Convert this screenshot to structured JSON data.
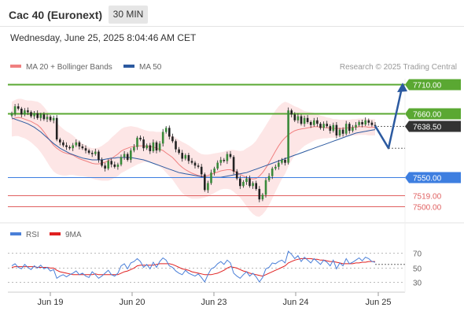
{
  "header": {
    "instrument": "Cac 40 (Euronext)",
    "timeframe": "30 MIN",
    "datetime": "Wednesday, June 25, 2025 8:04:46 AM CET",
    "credit": "Research © 2025 Trading Central"
  },
  "colors": {
    "ma20": "#f08080",
    "bollinger_fill": "#fde2e2",
    "ma50": "#2c5aa0",
    "resistance": "#5aa832",
    "support": "#3d7ee0",
    "minor_support": "#e06060",
    "price_box": "#333333",
    "forecast_arrow": "#2c5aa0",
    "rsi": "#4a7fd8",
    "rsi_ma": "#e02020",
    "candle_up": "#3a8a3a",
    "candle_down": "#222222"
  },
  "chart_data": [
    {
      "type": "candlestick",
      "legend": [
        "MA 20 + Bollinger Bands",
        "MA 50"
      ],
      "ylim": [
        7490,
        7720
      ],
      "x_ticks": [
        "Jun 19",
        "Jun 20",
        "Jun 23",
        "Jun 24",
        "Jun 25"
      ],
      "levels": [
        {
          "value": 7710.0,
          "label": "7710.00",
          "kind": "resistance"
        },
        {
          "value": 7660.0,
          "label": "7660.00",
          "kind": "resistance"
        },
        {
          "value": 7638.5,
          "label": "7638.50",
          "kind": "current"
        },
        {
          "value": 7550.0,
          "label": "7550.00",
          "kind": "support"
        },
        {
          "value": 7519.0,
          "label": "7519.00",
          "kind": "minor_support"
        },
        {
          "value": 7500.0,
          "label": "7500.00",
          "kind": "minor_support"
        }
      ],
      "closes": [
        7660,
        7672,
        7668,
        7658,
        7665,
        7662,
        7655,
        7660,
        7652,
        7658,
        7650,
        7654,
        7648,
        7652,
        7615,
        7610,
        7605,
        7602,
        7600,
        7605,
        7610,
        7603,
        7600,
        7596,
        7592,
        7590,
        7594,
        7580,
        7570,
        7565,
        7578,
        7572,
        7568,
        7572,
        7585,
        7590,
        7580,
        7596,
        7602,
        7618,
        7615,
        7600,
        7605,
        7595,
        7610,
        7596,
        7608,
        7628,
        7635,
        7620,
        7612,
        7598,
        7592,
        7582,
        7588,
        7578,
        7575,
        7570,
        7568,
        7555,
        7528,
        7540,
        7558,
        7565,
        7575,
        7580,
        7578,
        7590,
        7585,
        7560,
        7548,
        7535,
        7542,
        7548,
        7535,
        7540,
        7530,
        7512,
        7520,
        7545,
        7552,
        7565,
        7568,
        7575,
        7580,
        7575,
        7665,
        7658,
        7648,
        7655,
        7642,
        7652,
        7645,
        7640,
        7648,
        7642,
        7635,
        7642,
        7638,
        7630,
        7640,
        7622,
        7632,
        7625,
        7642,
        7630,
        7636,
        7640,
        7645,
        7641,
        7648,
        7644,
        7640,
        7638.5
      ],
      "ma20": [
        7650,
        7652,
        7653,
        7652,
        7650,
        7648,
        7646,
        7643,
        7640,
        7635,
        7628,
        7620,
        7612,
        7605,
        7600,
        7596,
        7593,
        7591,
        7590,
        7588,
        7585,
        7582,
        7580,
        7578,
        7576,
        7574,
        7573,
        7573,
        7574,
        7576,
        7578,
        7582,
        7586,
        7590,
        7595,
        7598,
        7600,
        7602,
        7603,
        7604,
        7604,
        7604,
        7603,
        7603,
        7602,
        7600,
        7598,
        7596,
        7592,
        7588,
        7584,
        7578,
        7572,
        7567,
        7563,
        7560,
        7557,
        7555,
        7553,
        7552,
        7552,
        7553,
        7555,
        7557,
        7559,
        7561,
        7562,
        7563,
        7563,
        7561,
        7558,
        7555,
        7552,
        7550,
        7548,
        7547,
        7548,
        7552,
        7558,
        7566,
        7575,
        7585,
        7595,
        7604,
        7612,
        7618,
        7623,
        7627,
        7630,
        7632,
        7633,
        7634,
        7635,
        7636,
        7637,
        7637,
        7636,
        7636,
        7635,
        7635,
        7634,
        7634,
        7634,
        7634,
        7635,
        7635,
        7636,
        7636,
        7637,
        7637,
        7637,
        7636,
        7636,
        7636
      ],
      "bb_width": [
        30,
        31,
        32,
        33,
        33,
        34,
        36,
        38,
        40,
        42,
        43,
        44,
        45,
        45,
        44,
        42,
        40,
        38,
        36,
        34,
        32,
        30,
        28,
        27,
        26,
        26,
        27,
        28,
        30,
        32,
        34,
        36,
        37,
        38,
        38,
        38,
        37,
        36,
        34,
        32,
        30,
        28,
        27,
        26,
        27,
        28,
        30,
        32,
        34,
        36,
        38,
        40,
        42,
        44,
        45,
        45,
        44,
        42,
        40,
        38,
        37,
        36,
        35,
        34,
        33,
        32,
        32,
        33,
        34,
        36,
        38,
        40,
        44,
        50,
        55,
        60,
        65,
        70,
        72,
        73,
        73,
        72,
        70,
        68,
        65,
        62,
        55,
        48,
        42,
        38,
        34,
        30,
        28,
        26,
        24,
        22,
        20,
        19,
        18,
        17,
        16,
        16,
        15,
        15,
        14,
        14,
        14,
        14,
        14,
        14,
        14,
        14,
        14,
        14
      ],
      "ma50": [
        7652,
        7650,
        7648,
        7646,
        7644,
        7642,
        7639,
        7636,
        7632,
        7628,
        7623,
        7618,
        7613,
        7608,
        7604,
        7600,
        7597,
        7594,
        7591,
        7589,
        7587,
        7585,
        7583,
        7582,
        7581,
        7580,
        7580,
        7580,
        7580,
        7581,
        7582,
        7583,
        7583,
        7584,
        7584,
        7584,
        7584,
        7584,
        7583,
        7582,
        7581,
        7580,
        7578,
        7576,
        7574,
        7572,
        7570,
        7568,
        7566,
        7564,
        7562,
        7560,
        7558,
        7557,
        7556,
        7555,
        7554,
        7553,
        7552,
        7551,
        7550,
        7550,
        7550,
        7550,
        7550,
        7550,
        7551,
        7552,
        7553,
        7554,
        7555,
        7556,
        7557,
        7558,
        7560,
        7562,
        7564,
        7566,
        7568,
        7570,
        7572,
        7574,
        7576,
        7578,
        7580,
        7582,
        7584,
        7586,
        7588,
        7590,
        7592,
        7594,
        7596,
        7598,
        7600,
        7602,
        7604,
        7606,
        7608,
        7610,
        7612,
        7614,
        7616,
        7618,
        7620,
        7622,
        7624,
        7626,
        7627,
        7628,
        7629,
        7630,
        7631,
        7632
      ],
      "forecast": [
        {
          "value": 7638.5
        },
        {
          "value": 7600
        },
        {
          "value": 7710
        }
      ]
    },
    {
      "type": "line",
      "legend": [
        "RSI",
        "9MA"
      ],
      "ylim": [
        20,
        80
      ],
      "y_ticks": [
        70,
        50,
        30
      ],
      "rsi": [
        52,
        55,
        50,
        48,
        54,
        50,
        47,
        52,
        49,
        53,
        48,
        50,
        45,
        47,
        35,
        38,
        40,
        37,
        40,
        42,
        45,
        40,
        42,
        38,
        36,
        44,
        40,
        35,
        38,
        42,
        46,
        40,
        38,
        42,
        52,
        55,
        48,
        56,
        58,
        62,
        58,
        50,
        54,
        48,
        57,
        50,
        58,
        63,
        60,
        52,
        50,
        45,
        42,
        40,
        46,
        42,
        40,
        38,
        41,
        36,
        30,
        40,
        48,
        50,
        55,
        58,
        54,
        60,
        56,
        42,
        38,
        35,
        40,
        44,
        38,
        42,
        37,
        30,
        36,
        48,
        50,
        56,
        55,
        58,
        60,
        56,
        72,
        68,
        62,
        66,
        58,
        64,
        60,
        56,
        62,
        58,
        54,
        60,
        57,
        52,
        60,
        48,
        56,
        52,
        62,
        55,
        57,
        60,
        63,
        59,
        64,
        62,
        58,
        57
      ],
      "rsi_ma": [
        50,
        51,
        51,
        51,
        51,
        51,
        51,
        51,
        50,
        50,
        50,
        50,
        49,
        49,
        46,
        44,
        43,
        42,
        41,
        40,
        40,
        40,
        40,
        40,
        40,
        40,
        41,
        40,
        40,
        40,
        40,
        40,
        40,
        40,
        42,
        44,
        45,
        47,
        49,
        52,
        53,
        53,
        53,
        53,
        53,
        54,
        55,
        55,
        55,
        55,
        54,
        52,
        50,
        48,
        47,
        46,
        44,
        43,
        42,
        41,
        40,
        40,
        40,
        41,
        42,
        44,
        46,
        49,
        51,
        50,
        49,
        47,
        45,
        44,
        42,
        41,
        40,
        39,
        38,
        40,
        42,
        44,
        46,
        48,
        50,
        52,
        56,
        58,
        60,
        61,
        62,
        62,
        62,
        62,
        61,
        61,
        60,
        60,
        59,
        58,
        58,
        57,
        56,
        55,
        55,
        55,
        55,
        56,
        56,
        57,
        57,
        58,
        58,
        58
      ],
      "forecast_window": [
        54,
        54
      ]
    }
  ]
}
